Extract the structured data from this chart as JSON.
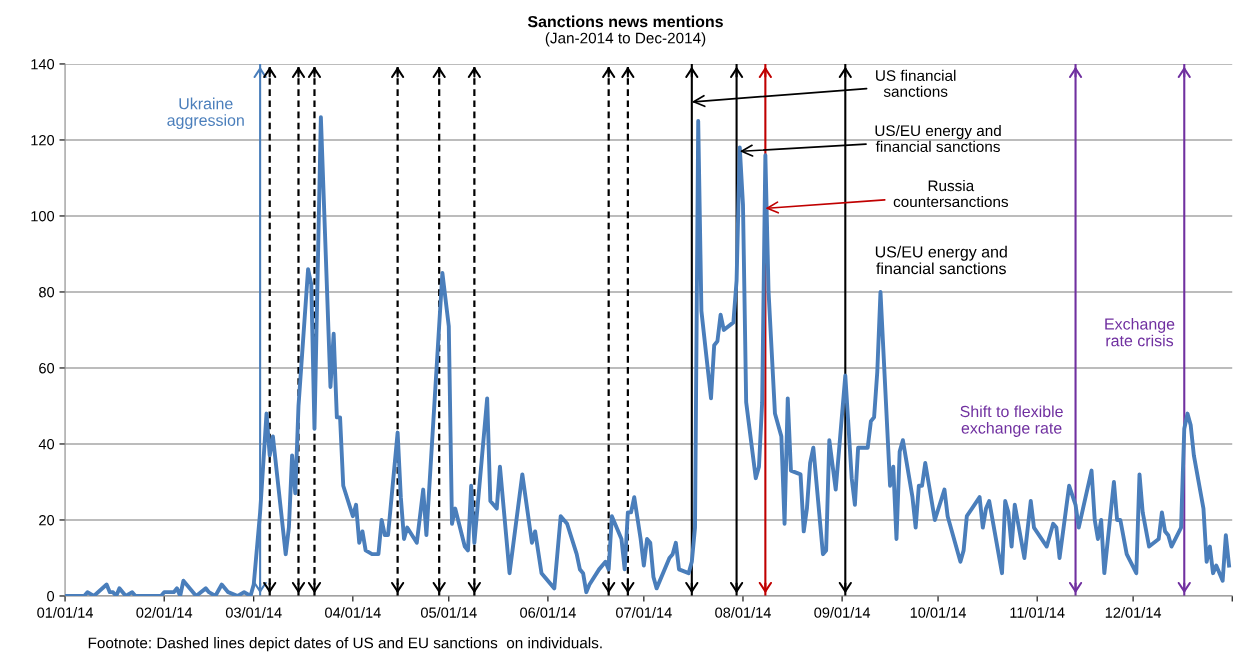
{
  "chart_data": {
    "type": "line",
    "title": "Sanctions news mentions",
    "subtitle": "(Jan-2014 to Dec-2014)",
    "x": [
      "2014-01-01",
      "2014-01-07",
      "2014-01-08",
      "2014-01-10",
      "2014-01-14",
      "2014-01-15",
      "2014-01-16",
      "2014-01-17",
      "2014-01-18",
      "2014-01-20",
      "2014-01-22",
      "2014-01-23",
      "2014-01-31",
      "2014-02-01",
      "2014-02-04",
      "2014-02-05",
      "2014-02-06",
      "2014-02-07",
      "2014-02-11",
      "2014-02-14",
      "2014-02-15",
      "2014-02-17",
      "2014-02-19",
      "2014-02-21",
      "2014-02-24",
      "2014-02-26",
      "2014-02-28",
      "2014-03-01",
      "2014-03-03",
      "2014-03-05",
      "2014-03-06",
      "2014-03-07",
      "2014-03-11",
      "2014-03-12",
      "2014-03-13",
      "2014-03-14",
      "2014-03-15",
      "2014-03-18",
      "2014-03-19",
      "2014-03-20",
      "2014-03-22",
      "2014-03-25",
      "2014-03-26",
      "2014-03-27",
      "2014-03-28",
      "2014-03-29",
      "2014-04-01",
      "2014-04-02",
      "2014-04-03",
      "2014-04-04",
      "2014-04-05",
      "2014-04-07",
      "2014-04-09",
      "2014-04-10",
      "2014-04-11",
      "2014-04-12",
      "2014-04-15",
      "2014-04-16",
      "2014-04-17",
      "2014-04-18",
      "2014-04-21",
      "2014-04-23",
      "2014-04-24",
      "2014-04-29",
      "2014-05-01",
      "2014-05-02",
      "2014-05-03",
      "2014-05-06",
      "2014-05-07",
      "2014-05-08",
      "2014-05-09",
      "2014-05-13",
      "2014-05-14",
      "2014-05-16",
      "2014-05-17",
      "2014-05-20",
      "2014-05-24",
      "2014-05-27",
      "2014-05-28",
      "2014-05-30",
      "2014-06-03",
      "2014-06-05",
      "2014-06-07",
      "2014-06-10",
      "2014-06-11",
      "2014-06-12",
      "2014-06-13",
      "2014-06-14",
      "2014-06-17",
      "2014-06-19",
      "2014-06-20",
      "2014-06-21",
      "2014-06-24",
      "2014-06-25",
      "2014-06-26",
      "2014-06-27",
      "2014-06-28",
      "2014-06-30",
      "2014-07-01",
      "2014-07-02",
      "2014-07-03",
      "2014-07-04",
      "2014-07-05",
      "2014-07-09",
      "2014-07-10",
      "2014-07-11",
      "2014-07-12",
      "2014-07-15",
      "2014-07-16",
      "2014-07-17",
      "2014-07-18",
      "2014-07-19",
      "2014-07-22",
      "2014-07-23",
      "2014-07-24",
      "2014-07-25",
      "2014-07-26",
      "2014-07-29",
      "2014-07-30",
      "2014-07-31",
      "2014-08-01",
      "2014-08-02",
      "2014-08-05",
      "2014-08-06",
      "2014-08-07",
      "2014-08-08",
      "2014-08-09",
      "2014-08-11",
      "2014-08-13",
      "2014-08-14",
      "2014-08-15",
      "2014-08-16",
      "2014-08-19",
      "2014-08-20",
      "2014-08-21",
      "2014-08-22",
      "2014-08-23",
      "2014-08-26",
      "2014-08-27",
      "2014-08-28",
      "2014-08-30",
      "2014-09-02",
      "2014-09-04",
      "2014-09-05",
      "2014-09-06",
      "2014-09-09",
      "2014-09-10",
      "2014-09-11",
      "2014-09-12",
      "2014-09-13",
      "2014-09-16",
      "2014-09-17",
      "2014-09-18",
      "2014-09-19",
      "2014-09-20",
      "2014-09-23",
      "2014-09-24",
      "2014-09-25",
      "2014-09-26",
      "2014-09-27",
      "2014-09-30",
      "2014-10-03",
      "2014-10-04",
      "2014-10-08",
      "2014-10-09",
      "2014-10-10",
      "2014-10-14",
      "2014-10-15",
      "2014-10-16",
      "2014-10-17",
      "2014-10-21",
      "2014-10-22",
      "2014-10-23",
      "2014-10-24",
      "2014-10-25",
      "2014-10-28",
      "2014-10-30",
      "2014-10-31",
      "2014-11-04",
      "2014-11-06",
      "2014-11-07",
      "2014-11-08",
      "2014-11-11",
      "2014-11-13",
      "2014-11-14",
      "2014-11-18",
      "2014-11-19",
      "2014-11-20",
      "2014-11-21",
      "2014-11-22",
      "2014-11-25",
      "2014-11-26",
      "2014-11-27",
      "2014-11-29",
      "2014-12-02",
      "2014-12-03",
      "2014-12-04",
      "2014-12-06",
      "2014-12-09",
      "2014-12-10",
      "2014-12-11",
      "2014-12-12",
      "2014-12-13",
      "2014-12-16",
      "2014-12-17",
      "2014-12-18",
      "2014-12-19",
      "2014-12-20",
      "2014-12-23",
      "2014-12-24",
      "2014-12-25",
      "2014-12-26",
      "2014-12-27",
      "2014-12-29",
      "2014-12-30",
      "2014-12-31"
    ],
    "series": [
      {
        "color": "#4a7ebb",
        "values": [
          0,
          0,
          1,
          0,
          3,
          1,
          1,
          0,
          2,
          0,
          1,
          0,
          0,
          1,
          1,
          2,
          0,
          4,
          0,
          2,
          1,
          0,
          3,
          1,
          0,
          1,
          0,
          3,
          22,
          48,
          37,
          42,
          11,
          18,
          37,
          27,
          50,
          86,
          82,
          44,
          126,
          55,
          69,
          47,
          47,
          29,
          21,
          24,
          14,
          17,
          12,
          11,
          11,
          20,
          16,
          16,
          43,
          26,
          15,
          18,
          14,
          28,
          16,
          85,
          71,
          19,
          23,
          13,
          12,
          29,
          14,
          52,
          25,
          23,
          34,
          6,
          32,
          14,
          17,
          6,
          2,
          21,
          19,
          11,
          7,
          6,
          1,
          3,
          7,
          9,
          7,
          21,
          15,
          7,
          22,
          22,
          26,
          15,
          8,
          15,
          14,
          5,
          2,
          10,
          11,
          14,
          7,
          6,
          9,
          18,
          125,
          75,
          52,
          66,
          67,
          74,
          70,
          72,
          83,
          118,
          103,
          51,
          31,
          34,
          51,
          116,
          80,
          48,
          42,
          19,
          52,
          33,
          32,
          17,
          23,
          35,
          39,
          11,
          12,
          41,
          28,
          58,
          31,
          24,
          39,
          39,
          46,
          47,
          59,
          80,
          29,
          34,
          15,
          38,
          41,
          26,
          18,
          29,
          29,
          35,
          20,
          28,
          21,
          9,
          12,
          21,
          26,
          18,
          23,
          25,
          6,
          25,
          22,
          13,
          24,
          10,
          25,
          18,
          13,
          19,
          18,
          10,
          29,
          24,
          18,
          33,
          20,
          15,
          20,
          6,
          30,
          20,
          20,
          11,
          6,
          32,
          22,
          13,
          15,
          22,
          17,
          16,
          13,
          18,
          44,
          48,
          45,
          37,
          23,
          9,
          13,
          6,
          8,
          4,
          16,
          8
        ]
      }
    ],
    "xlim": [
      "2014-01-01",
      "2015-01-01"
    ],
    "xticks": [
      {
        "value": "2014-01-01",
        "label": "01/01/14"
      },
      {
        "value": "2014-02-01",
        "label": "02/01/14"
      },
      {
        "value": "2014-03-01",
        "label": "03/01/14"
      },
      {
        "value": "2014-04-01",
        "label": "04/01/14"
      },
      {
        "value": "2014-05-01",
        "label": "05/01/14"
      },
      {
        "value": "2014-06-01",
        "label": "06/01/14"
      },
      {
        "value": "2014-07-01",
        "label": "07/01/14"
      },
      {
        "value": "2014-08-01",
        "label": "08/01/14"
      },
      {
        "value": "2014-09-01",
        "label": "09/01/14"
      },
      {
        "value": "2014-10-01",
        "label": "10/01/14"
      },
      {
        "value": "2014-11-01",
        "label": "11/01/14"
      },
      {
        "value": "2014-12-01",
        "label": "12/01/14"
      },
      {
        "value": "2015-01-01",
        "label": null
      }
    ],
    "ylim": [
      0,
      140
    ],
    "yticks": [
      0,
      20,
      40,
      60,
      80,
      100,
      120,
      140
    ],
    "grid": "y",
    "legend": false,
    "marker": "none",
    "line_style": "solid",
    "ref_lines": [
      {
        "axis": "x",
        "value": "2014-03-03",
        "label": "Ukraine\naggression",
        "color": "#4a7ebb",
        "line_style": "solid"
      },
      {
        "axis": "x",
        "value": "2014-03-06",
        "color": "#000000",
        "line_style": "dashed"
      },
      {
        "axis": "x",
        "value": "2014-03-15",
        "color": "#000000",
        "line_style": "dashed"
      },
      {
        "axis": "x",
        "value": "2014-03-20",
        "color": "#000000",
        "line_style": "dashed"
      },
      {
        "axis": "x",
        "value": "2014-04-15",
        "color": "#000000",
        "line_style": "dashed"
      },
      {
        "axis": "x",
        "value": "2014-04-28",
        "color": "#000000",
        "line_style": "dashed"
      },
      {
        "axis": "x",
        "value": "2014-05-09",
        "color": "#000000",
        "line_style": "dashed"
      },
      {
        "axis": "x",
        "value": "2014-06-20",
        "color": "#000000",
        "line_style": "dashed"
      },
      {
        "axis": "x",
        "value": "2014-06-26",
        "color": "#000000",
        "line_style": "dashed"
      },
      {
        "axis": "x",
        "value": "2014-07-16",
        "color": "#000000",
        "line_style": "solid"
      },
      {
        "axis": "x",
        "value": "2014-07-30",
        "color": "#000000",
        "line_style": "solid"
      },
      {
        "axis": "x",
        "value": "2014-09-02",
        "label": "US/EU energy and\nfinancial sanctions",
        "color": "#000000",
        "line_style": "solid"
      },
      {
        "axis": "x",
        "value": "2014-08-08",
        "color": "#c00000",
        "line_style": "solid"
      },
      {
        "axis": "x",
        "value": "2014-11-13",
        "label": "Shift to flexible\nexchange rate",
        "color": "#7030a0",
        "line_style": "solid"
      },
      {
        "axis": "x",
        "value": "2014-12-17",
        "label": "Exchange\nrate crisis",
        "color": "#7030a0",
        "line_style": "solid"
      }
    ],
    "annotations": [
      {
        "text": "US financial\nsanctions",
        "x": "2014-07-16",
        "y": 130
      },
      {
        "text": "US/EU energy and\nfinancial sanctions",
        "x": "2014-07-31",
        "y": 117
      },
      {
        "text": "Russia\ncountersanctions",
        "x": "2014-08-08",
        "y": 102
      },
      "Footnote: Dashed lines depict dates of US and EU sanctions  on individuals."
    ]
  }
}
